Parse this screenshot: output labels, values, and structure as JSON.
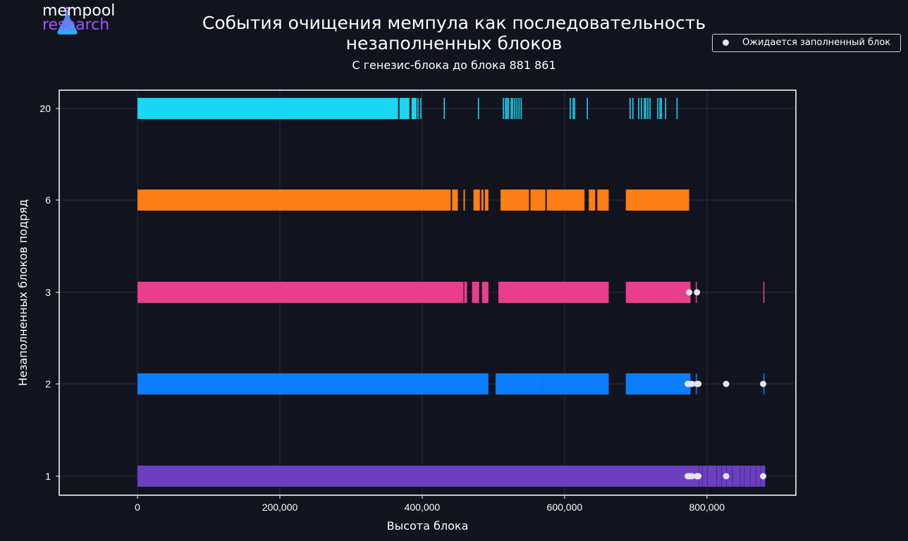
{
  "brand": {
    "line1": "mempool",
    "line2": "research"
  },
  "colors": {
    "background": "#11131f",
    "frame": "#ffffff",
    "grid": "#2a2e3d",
    "marker": "#e4e4ea",
    "brand_purple": "#9b59ff"
  },
  "chart_data": {
    "type": "timeline",
    "title": "События очищения мемпула как последовательность\nнезаполненных блоков",
    "subtitle": "С генезис-блока до блока 881 861",
    "xlabel": "Высота блока",
    "ylabel": "Незаполненных блоков подряд",
    "xlim": [
      -110000,
      925000
    ],
    "x_ticks": [
      0,
      200000,
      400000,
      600000,
      800000
    ],
    "x_tick_labels": [
      "0",
      "200,000",
      "400,000",
      "600,000",
      "800,000"
    ],
    "categories": [
      "1",
      "2",
      "3",
      "6",
      "20"
    ],
    "grid": true,
    "legend": {
      "position": "top-right",
      "entries": [
        "Ожидается заполненный блок"
      ]
    },
    "series": [
      {
        "category": "1",
        "color": "#6c3fc1",
        "segments": [
          [
            0,
            881861
          ]
        ],
        "lines": [
          788000,
          793000,
          800000,
          813000,
          820000,
          827000,
          835000,
          846000,
          852000,
          860000,
          868000,
          875000
        ],
        "expected_full": [
          773000,
          776000,
          779000,
          786000,
          788000,
          827000,
          879000
        ]
      },
      {
        "category": "2",
        "color": "#0b7dff",
        "segments": [
          [
            0,
            493000
          ],
          [
            503000,
            662000
          ],
          [
            686000,
            777000
          ]
        ],
        "lines": [
          457000,
          462000,
          469000,
          478000,
          480000,
          570000,
          628000,
          640000,
          650000,
          785000,
          880000
        ],
        "expected_full": [
          773000,
          776000,
          779000,
          786000,
          788000,
          827000,
          879000
        ]
      },
      {
        "category": "3",
        "color": "#e83e8c",
        "segments": [
          [
            0,
            458000
          ],
          [
            459000,
            463000
          ],
          [
            470000,
            480000
          ],
          [
            484000,
            493000
          ],
          [
            507000,
            662000
          ],
          [
            686000,
            777000
          ]
        ],
        "lines": [
          785000,
          880000
        ],
        "expected_full": [
          775000,
          786000
        ]
      },
      {
        "category": "6",
        "color": "#fd7e14",
        "segments": [
          [
            0,
            440000
          ],
          [
            442000,
            450000
          ],
          [
            458000,
            460000
          ],
          [
            472000,
            481000
          ],
          [
            483000,
            486000
          ],
          [
            488000,
            493000
          ],
          [
            510000,
            550000
          ],
          [
            552000,
            573000
          ],
          [
            575000,
            628000
          ],
          [
            634000,
            643000
          ],
          [
            646000,
            662000
          ],
          [
            686000,
            775000
          ]
        ],
        "lines": [],
        "expected_full": []
      },
      {
        "category": "20",
        "color": "#19d7f2",
        "segments": [
          [
            0,
            366000
          ],
          [
            368000,
            382000
          ],
          [
            385000,
            392000
          ]
        ],
        "lines": [
          371000,
          378000,
          386000,
          389000,
          394000,
          398000,
          431000,
          479000,
          514000,
          517000,
          519000,
          521000,
          525000,
          527000,
          530000,
          533000,
          536000,
          539000,
          608000,
          612000,
          614000,
          632000,
          692000,
          696000,
          704000,
          708000,
          712000,
          714000,
          717000,
          720000,
          731000,
          734000,
          736000,
          742000,
          758000
        ]
      }
    ]
  }
}
